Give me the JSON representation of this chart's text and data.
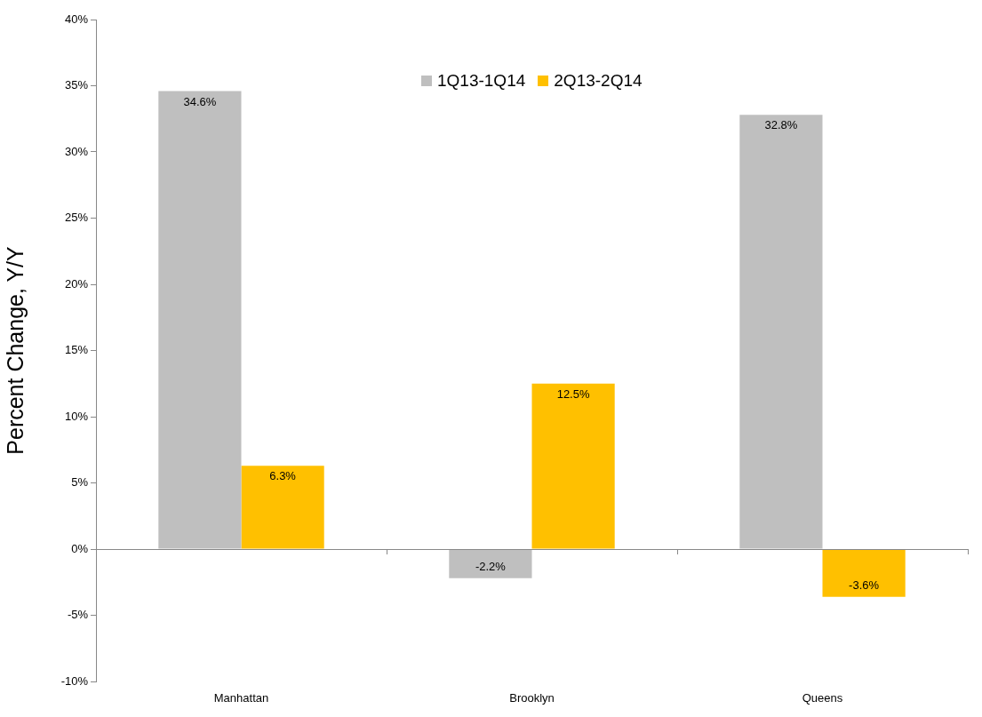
{
  "chart_data": {
    "type": "bar",
    "ylabel": "Percent Change, Y/Y",
    "categories": [
      "Manhattan",
      "Brooklyn",
      "Queens"
    ],
    "series": [
      {
        "name": "1Q13-1Q14",
        "color": "#bfbfbf",
        "values": [
          34.6,
          -2.2,
          32.8
        ],
        "value_labels": [
          "34.6%",
          "-2.2%",
          "32.8%"
        ]
      },
      {
        "name": "2Q13-2Q14",
        "color": "#ffc000",
        "values": [
          6.3,
          12.5,
          -3.6
        ],
        "value_labels": [
          "6.3%",
          "12.5%",
          "-3.6%"
        ]
      }
    ],
    "ylim": [
      -10,
      40
    ],
    "yticks": [
      {
        "value": -10,
        "label": "-10%"
      },
      {
        "value": -5,
        "label": "-5%"
      },
      {
        "value": 0,
        "label": "0%"
      },
      {
        "value": 5,
        "label": "5%"
      },
      {
        "value": 10,
        "label": "10%"
      },
      {
        "value": 15,
        "label": "15%"
      },
      {
        "value": 20,
        "label": "20%"
      },
      {
        "value": 25,
        "label": "25%"
      },
      {
        "value": 30,
        "label": "30%"
      },
      {
        "value": 35,
        "label": "35%"
      },
      {
        "value": 40,
        "label": "40%"
      }
    ],
    "legend": "top"
  }
}
